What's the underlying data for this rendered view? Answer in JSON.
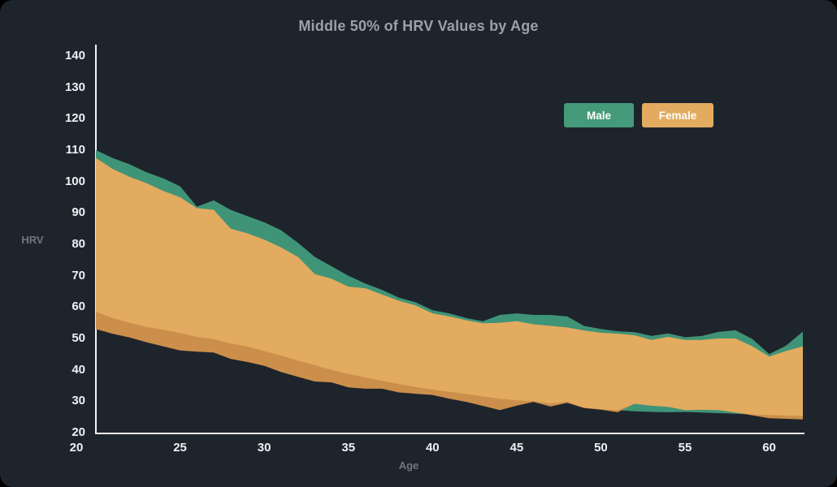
{
  "title": "Middle 50% of HRV Values by Age",
  "axes": {
    "y_label": "HRV",
    "x_label": "Age",
    "y_ticks": [
      140,
      130,
      120,
      110,
      100,
      90,
      80,
      70,
      60,
      50,
      40,
      30,
      20
    ],
    "x_ticks": [
      20,
      25,
      30,
      35,
      40,
      45,
      50,
      55,
      60
    ]
  },
  "legend": [
    {
      "label": "Male",
      "color": "#459a7b"
    },
    {
      "label": "Female",
      "color": "#e2ab60"
    }
  ],
  "colors": {
    "background": "#1e242c",
    "outer": "#000000",
    "axis_line": "#f2f4f5",
    "tick_text": "#eef0f3",
    "muted_text": "#70777f",
    "title_text": "#9aa1a9",
    "male_band": "#3f9478",
    "female_band_on_dark": "#cc8f4b",
    "band_overlap": "#e2ab60"
  },
  "chart_data": {
    "type": "area",
    "title": "Middle 50% of HRV Values by Age",
    "xlabel": "Age",
    "ylabel": "HRV",
    "xlim": [
      20,
      62
    ],
    "ylim": [
      20,
      143.6
    ],
    "grid": false,
    "legend_position": "top-right",
    "description": "Two overlapping interquartile (middle 50%) bands of HRV by age, male band drawn beneath female band",
    "x": [
      20,
      21,
      22,
      23,
      24,
      25,
      26,
      27,
      28,
      29,
      30,
      31,
      32,
      33,
      34,
      35,
      36,
      37,
      38,
      39,
      40,
      41,
      42,
      43,
      44,
      45,
      46,
      47,
      48,
      49,
      50,
      51,
      52,
      53,
      54,
      55,
      56,
      57,
      58,
      59,
      60,
      61,
      62
    ],
    "series": [
      {
        "name": "Male",
        "q3": [
          110,
          107.5,
          105.5,
          103,
          101,
          98.5,
          92,
          94,
          91,
          89,
          87,
          84.5,
          80.5,
          76,
          73,
          70,
          67.5,
          65.5,
          63,
          61.5,
          59,
          58,
          56.5,
          55.5,
          57.5,
          58,
          57.5,
          57.5,
          57,
          54,
          53,
          52.3,
          52,
          50.8,
          51.6,
          50.4,
          50.8,
          52.1,
          52.6,
          49.8,
          45,
          47.7,
          52.2
        ],
        "q1": [
          58.5,
          56.5,
          55,
          53.7,
          52.8,
          51.7,
          50.5,
          49.8,
          48.4,
          47.5,
          46,
          44.5,
          43,
          41.5,
          40,
          38.7,
          37.6,
          36.5,
          35.5,
          34.5,
          33.7,
          33,
          32.3,
          31.5,
          30.8,
          30.3,
          30,
          29.3,
          29.8,
          28,
          27.5,
          27.2,
          26.8,
          26.6,
          26.5,
          26.6,
          26.4,
          26.2,
          26,
          25.8,
          25.6,
          25.4,
          25.3
        ]
      },
      {
        "name": "Female",
        "q3": [
          107.5,
          104,
          101.5,
          99.5,
          97,
          95,
          91.5,
          91,
          85,
          83.5,
          81.5,
          79,
          76,
          70.5,
          69,
          66.5,
          66,
          64,
          62,
          60.5,
          58,
          57,
          55.8,
          54.8,
          55,
          55.5,
          54.5,
          54,
          53.5,
          52.5,
          51.8,
          51.5,
          51,
          49.5,
          50.5,
          49.5,
          49.5,
          50,
          50,
          47.5,
          44.2,
          46,
          47.5
        ],
        "q1": [
          53,
          51.5,
          50.3,
          48.8,
          47.5,
          46.2,
          45.8,
          45.5,
          43.5,
          42.5,
          41.3,
          39.3,
          37.8,
          36.3,
          36,
          34.4,
          34,
          34,
          32.8,
          32.4,
          32,
          30.8,
          29.8,
          28.5,
          27.2,
          28.6,
          29.8,
          28.3,
          29.5,
          27.8,
          27.3,
          26.5,
          29.2,
          28.6,
          28.2,
          27.2,
          27.3,
          27.2,
          26.4,
          25.5,
          24.6,
          24.4,
          24.2
        ]
      }
    ]
  }
}
